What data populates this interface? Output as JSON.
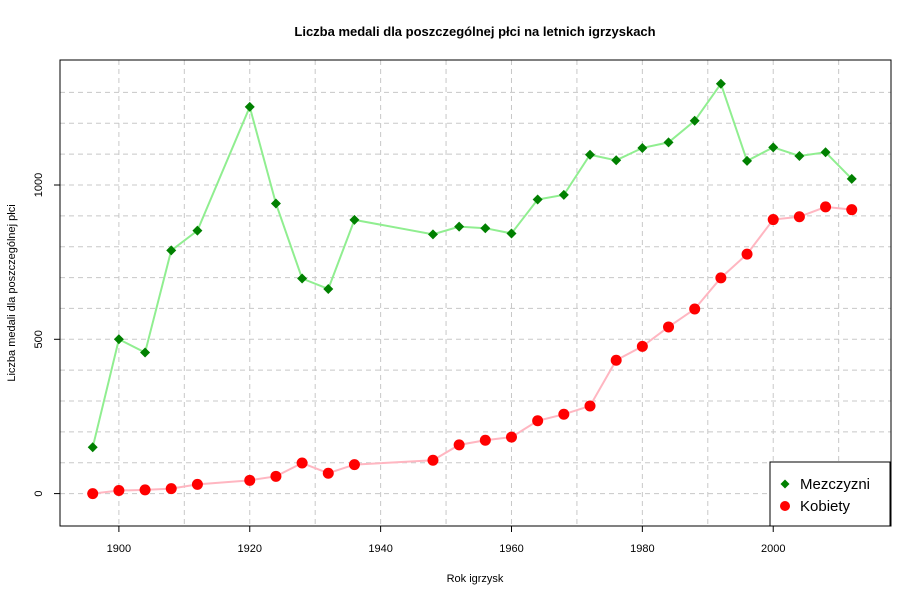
{
  "chart_data": {
    "type": "line",
    "title": "Liczba medali dla poszczególnej płci na letnich igrzyskach",
    "xlabel": "Rok igrzysk",
    "ylabel": "Liczba medali dla poszczególnej płci",
    "xlim": [
      1891,
      2018
    ],
    "ylim": [
      -105,
      1405
    ],
    "x_ticks": [
      1900,
      1920,
      1940,
      1960,
      1980,
      2000
    ],
    "y_ticks": [
      0,
      500,
      1000
    ],
    "grid": true,
    "legend_position": "bottom-right",
    "series": [
      {
        "name": "Mezczyzni",
        "line_color": "#90ee90",
        "point_color": "#008000",
        "marker": "diamond",
        "x": [
          1896,
          1900,
          1904,
          1908,
          1912,
          1920,
          1924,
          1928,
          1932,
          1936,
          1948,
          1952,
          1956,
          1960,
          1964,
          1968,
          1972,
          1976,
          1980,
          1984,
          1988,
          1992,
          1996,
          2000,
          2004,
          2008,
          2012
        ],
        "values": [
          150,
          500,
          457,
          788,
          852,
          1253,
          940,
          697,
          663,
          887,
          840,
          865,
          860,
          843,
          953,
          968,
          1098,
          1080,
          1120,
          1138,
          1208,
          1328,
          1078,
          1122,
          1094,
          1106,
          1020
        ]
      },
      {
        "name": "Kobiety",
        "line_color": "#ffb6c1",
        "point_color": "#ff0000",
        "marker": "circle",
        "x": [
          1896,
          1900,
          1904,
          1908,
          1912,
          1920,
          1924,
          1928,
          1932,
          1936,
          1948,
          1952,
          1956,
          1960,
          1964,
          1968,
          1972,
          1976,
          1980,
          1984,
          1988,
          1992,
          1996,
          2000,
          2004,
          2008,
          2012
        ],
        "values": [
          0,
          10,
          12,
          16,
          30,
          43,
          56,
          99,
          66,
          94,
          108,
          158,
          173,
          183,
          236,
          257,
          284,
          432,
          477,
          540,
          598,
          699,
          776,
          888,
          897,
          929,
          920
        ]
      }
    ]
  }
}
